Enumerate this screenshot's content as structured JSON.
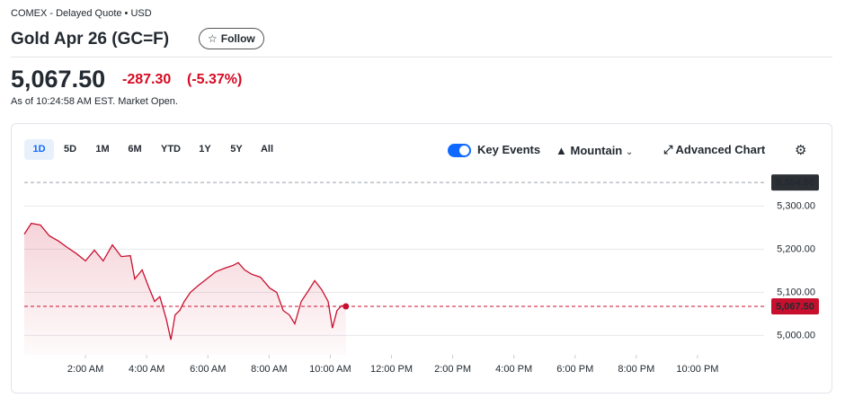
{
  "header": {
    "exchange": "COMEX - Delayed Quote • USD",
    "title": "Gold Apr 26 (GC=F)",
    "follow": "Follow",
    "price": "5,067.50",
    "change": "-287.30",
    "change_percent": "(-5.37%)",
    "timestamp": "As of 10:24:58 AM EST. Market Open."
  },
  "toolbar": {
    "ranges": [
      "1D",
      "5D",
      "1M",
      "6M",
      "YTD",
      "1Y",
      "5Y",
      "All"
    ],
    "key_events": "Key Events",
    "chart_style": "Mountain",
    "advanced_chart": "Advanced Chart"
  },
  "chart_data": {
    "type": "line",
    "color": "#c8102e",
    "x": [
      0,
      0.23,
      0.53,
      0.82,
      1.12,
      1.41,
      1.7,
      2.0,
      2.29,
      2.58,
      2.88,
      3.17,
      3.47,
      3.61,
      3.85,
      4.05,
      4.26,
      4.43,
      4.64,
      4.79,
      4.93,
      5.08,
      5.23,
      5.43,
      5.67,
      5.96,
      6.26,
      6.55,
      6.84,
      6.99,
      7.2,
      7.43,
      7.72,
      8.02,
      8.25,
      8.46,
      8.66,
      8.84,
      9.05,
      9.25,
      9.49,
      9.72,
      9.93,
      10.07,
      10.22,
      10.37,
      10.51
    ],
    "values": [
      5235,
      5260,
      5256,
      5231,
      5219,
      5204,
      5190,
      5173,
      5198,
      5173,
      5210,
      5183,
      5185,
      5131,
      5152,
      5115,
      5079,
      5090,
      5038,
      4990,
      5048,
      5058,
      5079,
      5100,
      5115,
      5131,
      5148,
      5156,
      5163,
      5169,
      5152,
      5142,
      5135,
      5110,
      5100,
      5058,
      5048,
      5027,
      5079,
      5100,
      5127,
      5106,
      5079,
      5017,
      5058,
      5069,
      5067.5
    ],
    "xlim": [
      0,
      24
    ],
    "xticks": [
      {
        "value": 2,
        "label": "2:00 AM"
      },
      {
        "value": 4,
        "label": "4:00 AM"
      },
      {
        "value": 6,
        "label": "6:00 AM"
      },
      {
        "value": 8,
        "label": "8:00 AM"
      },
      {
        "value": 10,
        "label": "10:00 AM"
      },
      {
        "value": 12,
        "label": "12:00 PM"
      },
      {
        "value": 14,
        "label": "2:00 PM"
      },
      {
        "value": 16,
        "label": "4:00 PM"
      },
      {
        "value": 18,
        "label": "6:00 PM"
      },
      {
        "value": 20,
        "label": "8:00 PM"
      },
      {
        "value": 22,
        "label": "10:00 PM"
      }
    ],
    "ylim": [
      4955,
      5380
    ],
    "yticks": [
      {
        "value": 5000,
        "label": "5,000.00"
      },
      {
        "value": 5100,
        "label": "5,100.00"
      },
      {
        "value": 5200,
        "label": "5,200.00"
      },
      {
        "value": 5300,
        "label": "5,300.00"
      }
    ],
    "grid": true,
    "reference_lines": [
      {
        "value": 5354.8,
        "label": "5,354.80",
        "color": "#9aa0a6"
      },
      {
        "value": 5067.5,
        "label": "5,067.50",
        "color": "#c8102e"
      }
    ]
  }
}
